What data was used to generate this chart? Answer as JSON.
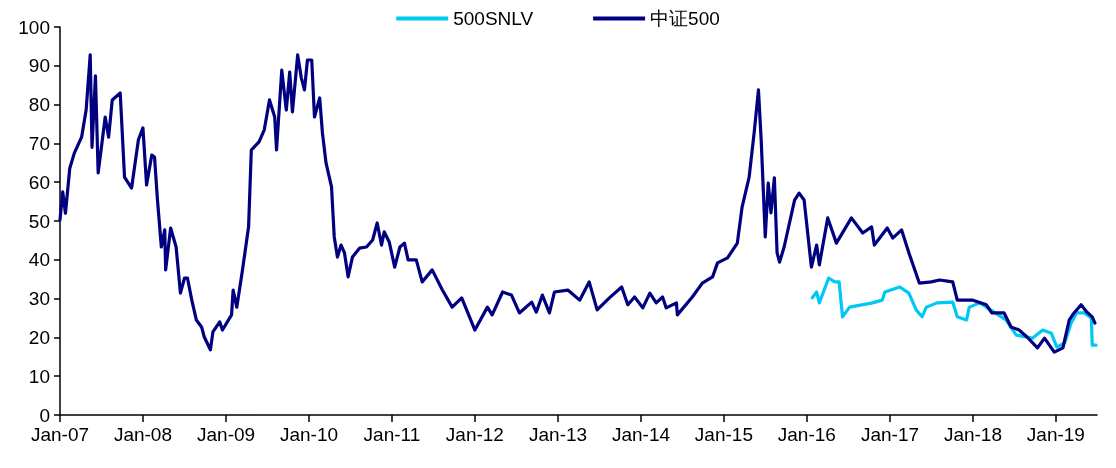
{
  "chart_data": {
    "type": "line",
    "xlim": [
      "2007-01-01",
      "2019-07-01"
    ],
    "xticks": [
      {
        "value": "2007-01-01",
        "label": "Jan-07"
      },
      {
        "value": "2008-01-01",
        "label": "Jan-08"
      },
      {
        "value": "2009-01-01",
        "label": "Jan-09"
      },
      {
        "value": "2010-01-01",
        "label": "Jan-10"
      },
      {
        "value": "2011-01-01",
        "label": "Jan-11"
      },
      {
        "value": "2012-01-01",
        "label": "Jan-12"
      },
      {
        "value": "2013-01-01",
        "label": "Jan-13"
      },
      {
        "value": "2014-01-01",
        "label": "Jan-14"
      },
      {
        "value": "2015-01-01",
        "label": "Jan-15"
      },
      {
        "value": "2016-01-01",
        "label": "Jan-16"
      },
      {
        "value": "2017-01-01",
        "label": "Jan-17"
      },
      {
        "value": "2018-01-01",
        "label": "Jan-18"
      },
      {
        "value": "2019-01-01",
        "label": "Jan-19"
      }
    ],
    "ylim": [
      0,
      100
    ],
    "yticks": [
      0,
      10,
      20,
      30,
      40,
      50,
      60,
      70,
      80,
      90,
      100
    ],
    "grid": false,
    "legend": "top",
    "marker": "none",
    "line_style": "solid",
    "series": [
      {
        "name": "500SNLV",
        "color": "#00c8f5",
        "x": [
          "2016-01-25",
          "2016-02-13",
          "2016-02-25",
          "2016-04-06",
          "2016-05-02",
          "2016-05-22",
          "2016-06-06",
          "2016-07-07",
          "2016-10-16",
          "2016-11-28",
          "2016-12-09",
          "2017-02-13",
          "2017-03-25",
          "2017-04-26",
          "2017-05-22",
          "2017-06-10",
          "2017-07-27",
          "2017-10-04",
          "2017-10-24",
          "2017-12-04",
          "2017-12-16",
          "2018-02-01",
          "2018-03-01",
          "2018-05-26",
          "2018-07-11",
          "2018-09-20",
          "2018-11-04",
          "2018-12-12",
          "2019-01-05",
          "2019-02-09",
          "2019-03-09",
          "2019-04-02",
          "2019-05-06",
          "2019-06-06",
          "2019-06-10",
          "2019-06-27"
        ],
        "values": [
          30.2,
          31.7,
          28.9,
          35.3,
          34.3,
          34.3,
          25.3,
          27.8,
          28.9,
          29.6,
          31.7,
          33,
          31.4,
          27.1,
          25.3,
          27.8,
          28.9,
          29.1,
          25.3,
          24.5,
          27.8,
          28.9,
          27.8,
          24.5,
          20.6,
          19.8,
          21.9,
          21.1,
          17.5,
          18.6,
          23.7,
          26.3,
          26.3,
          25,
          18,
          18
        ]
      },
      {
        "name": "中证500",
        "color": "#000080",
        "x": [
          "2007-01-01",
          "2007-01-13",
          "2007-01-25",
          "2007-02-13",
          "2007-03-05",
          "2007-04-06",
          "2007-04-26",
          "2007-05-14",
          "2007-05-22",
          "2007-06-06",
          "2007-06-18",
          "2007-07-19",
          "2007-08-03",
          "2007-08-19",
          "2007-09-23",
          "2007-10-12",
          "2007-11-12",
          "2007-12-12",
          "2008-01-01",
          "2008-01-17",
          "2008-02-09",
          "2008-02-21",
          "2008-03-05",
          "2008-03-22",
          "2008-04-06",
          "2008-04-10",
          "2008-05-02",
          "2008-05-26",
          "2008-06-14",
          "2008-07-02",
          "2008-07-15",
          "2008-08-03",
          "2008-08-23",
          "2008-09-15",
          "2008-09-27",
          "2008-10-24",
          "2008-11-04",
          "2008-12-04",
          "2008-12-16",
          "2009-01-25",
          "2009-02-01",
          "2009-02-17",
          "2009-03-13",
          "2009-04-10",
          "2009-04-22",
          "2009-05-26",
          "2009-06-18",
          "2009-07-11",
          "2009-08-03",
          "2009-08-11",
          "2009-09-03",
          "2009-09-23",
          "2009-10-08",
          "2009-10-20",
          "2009-11-12",
          "2009-11-28",
          "2009-12-12",
          "2009-12-25",
          "2010-01-13",
          "2010-01-25",
          "2010-02-17",
          "2010-03-01",
          "2010-03-17",
          "2010-04-10",
          "2010-04-22",
          "2010-05-06",
          "2010-05-22",
          "2010-06-06",
          "2010-06-22",
          "2010-07-11",
          "2010-08-11",
          "2010-09-11",
          "2010-10-08",
          "2010-10-28",
          "2010-11-16",
          "2010-11-28",
          "2010-12-20",
          "2011-01-13",
          "2011-02-05",
          "2011-02-25",
          "2011-03-13",
          "2011-04-18",
          "2011-05-14",
          "2011-06-27",
          "2011-08-11",
          "2011-09-23",
          "2011-11-04",
          "2012-01-01",
          "2012-02-25",
          "2012-03-17",
          "2012-05-02",
          "2012-06-10",
          "2012-07-15",
          "2012-09-07",
          "2012-09-27",
          "2012-10-24",
          "2012-11-24",
          "2012-12-16",
          "2013-02-13",
          "2013-04-06",
          "2013-05-18",
          "2013-06-22",
          "2013-08-15",
          "2013-10-08",
          "2013-11-04",
          "2013-12-04",
          "2014-01-09",
          "2014-02-09",
          "2014-03-09",
          "2014-04-06",
          "2014-04-22",
          "2014-06-06",
          "2014-06-10",
          "2014-08-15",
          "2014-09-28",
          "2014-11-12",
          "2014-12-04",
          "2015-01-17",
          "2015-03-01",
          "2015-03-22",
          "2015-04-22",
          "2015-05-14",
          "2015-06-02",
          "2015-06-14",
          "2015-07-02",
          "2015-07-15",
          "2015-07-27",
          "2015-08-11",
          "2015-08-23",
          "2015-09-03",
          "2015-09-23",
          "2015-11-08",
          "2015-11-28",
          "2015-12-20",
          "2016-01-21",
          "2016-02-13",
          "2016-02-25",
          "2016-04-02",
          "2016-05-10",
          "2016-07-15",
          "2016-09-03",
          "2016-10-12",
          "2016-10-24",
          "2016-12-20",
          "2017-01-13",
          "2017-02-21",
          "2017-03-25",
          "2017-05-10",
          "2017-07-02",
          "2017-08-07",
          "2017-10-04",
          "2017-10-24",
          "2018-01-01",
          "2018-03-01",
          "2018-03-25",
          "2018-05-18",
          "2018-06-18",
          "2018-07-23",
          "2018-08-27",
          "2018-10-12",
          "2018-11-12",
          "2018-12-25",
          "2019-02-01",
          "2019-03-01",
          "2019-03-22",
          "2019-04-22",
          "2019-05-18",
          "2019-06-10",
          "2019-06-22"
        ],
        "values": [
          50.3,
          57.5,
          52,
          63.6,
          67.5,
          71.6,
          78.6,
          92.8,
          69,
          87.4,
          62.4,
          76.8,
          71.6,
          81.2,
          83,
          61.3,
          58.5,
          70.9,
          74,
          59.3,
          67,
          66.5,
          55.4,
          43.3,
          47.7,
          37.4,
          48.2,
          43.3,
          31.4,
          35.3,
          35.3,
          29.6,
          24.5,
          22.7,
          20.1,
          16.8,
          21.4,
          24,
          21.9,
          25.8,
          32.2,
          27.8,
          36.9,
          48.5,
          68.3,
          70.4,
          73.5,
          81.2,
          76.8,
          68.3,
          88.9,
          78.6,
          88.4,
          78.1,
          92.8,
          86.9,
          83.8,
          91.5,
          91.5,
          76.8,
          81.7,
          72.7,
          64.9,
          58.8,
          45.9,
          40.7,
          43.8,
          41.8,
          35.6,
          40.7,
          43,
          43.3,
          45.1,
          49.5,
          43.8,
          47.2,
          44.6,
          38.1,
          43.3,
          44.3,
          40,
          40,
          34.3,
          37.4,
          32.2,
          27.8,
          30.2,
          21.9,
          27.8,
          25.8,
          31.7,
          30.9,
          26.3,
          29.1,
          26.5,
          30.9,
          26.3,
          31.7,
          32.2,
          29.6,
          34.3,
          27.1,
          30.2,
          33,
          28.4,
          30.4,
          27.6,
          31.4,
          28.9,
          30.4,
          27.6,
          28.9,
          25.8,
          30.4,
          34,
          35.6,
          39.2,
          40.5,
          44.3,
          53.6,
          61.3,
          72.7,
          83.8,
          70.9,
          45.9,
          59.8,
          52.1,
          61.1,
          41.8,
          39.4,
          43.3,
          55.4,
          57.2,
          55.4,
          38.1,
          43.8,
          38.7,
          50.8,
          44.3,
          50.8,
          46.9,
          48.5,
          43.8,
          48.2,
          45.6,
          47.7,
          41.8,
          34,
          34.3,
          34.8,
          34.3,
          29.6,
          29.6,
          28.4,
          26.3,
          26.3,
          22.7,
          21.9,
          20.1,
          17.3,
          19.8,
          16.2,
          17.3,
          24.5,
          26.3,
          28.4,
          26.5,
          25.3,
          23.7
        ]
      }
    ]
  }
}
